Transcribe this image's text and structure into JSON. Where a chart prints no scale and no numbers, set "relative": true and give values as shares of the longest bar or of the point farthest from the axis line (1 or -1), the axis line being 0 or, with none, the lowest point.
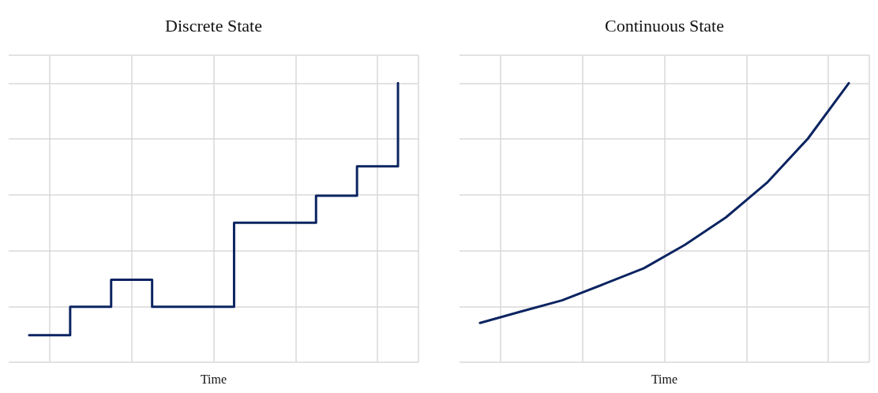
{
  "chart_data": [
    {
      "type": "step",
      "title": "Discrete State",
      "xlabel": "Time",
      "relative": true,
      "grid": true,
      "categories": [
        null,
        null,
        null,
        null,
        null,
        null,
        null,
        null,
        null,
        null
      ],
      "series": [
        {
          "color": "#0c2461",
          "values": [
            0.097,
            0.199,
            0.296,
            0.199,
            0.199,
            0.5,
            0.5,
            0.597,
            0.702,
            1
          ]
        }
      ]
    },
    {
      "type": "line",
      "title": "Continuous State",
      "xlabel": "Time",
      "relative": true,
      "grid": true,
      "categories": [
        null,
        null,
        null,
        null,
        null,
        null,
        null,
        null,
        null,
        null
      ],
      "series": [
        {
          "color": "#0c2461",
          "values": [
            0.141,
            0.182,
            0.222,
            0.279,
            0.337,
            0.421,
            0.519,
            0.643,
            0.801,
            1
          ]
        }
      ]
    }
  ]
}
